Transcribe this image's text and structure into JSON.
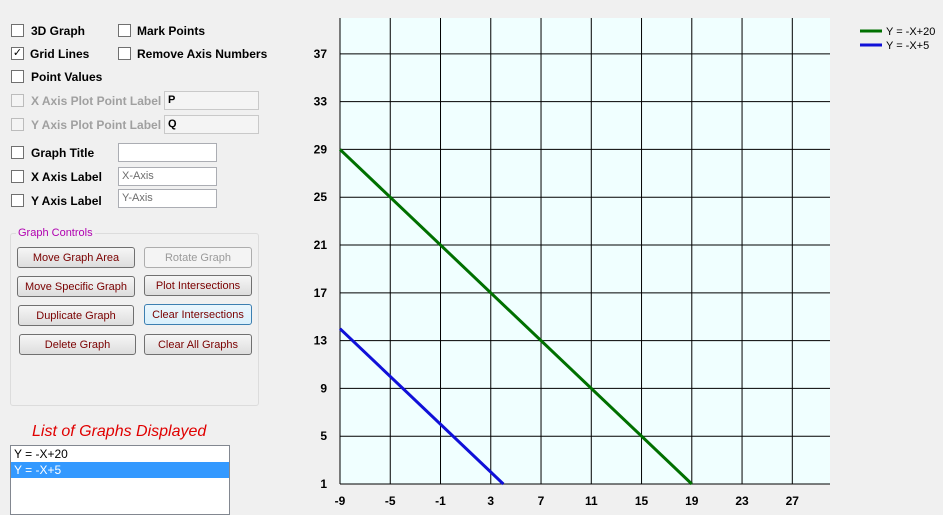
{
  "options": {
    "graph_3d": {
      "label": "3D Graph",
      "checked": false
    },
    "mark_points": {
      "label": "Mark Points",
      "checked": false
    },
    "grid_lines": {
      "label": "Grid Lines",
      "checked": true,
      "mark": "✓"
    },
    "remove_axis_numbers": {
      "label": "Remove Axis Numbers",
      "checked": false
    },
    "point_values": {
      "label": "Point Values",
      "checked": false
    },
    "x_plot_label": {
      "label": "X Axis Plot Point Label",
      "value": "P",
      "enabled": false
    },
    "y_plot_label": {
      "label": "Y Axis Plot Point Label",
      "value": "Q",
      "enabled": false
    },
    "graph_title": {
      "label": "Graph Title",
      "value": ""
    },
    "x_axis_label": {
      "label": "X Axis Label",
      "value": "X-Axis"
    },
    "y_axis_label": {
      "label": "Y Axis Label",
      "value": "Y-Axis"
    }
  },
  "graph_controls": {
    "title": "Graph Controls",
    "move_graph_area": "Move Graph Area",
    "rotate_graph": "Rotate Graph",
    "move_specific_graph": "Move Specific Graph",
    "plot_intersections": "Plot Intersections",
    "duplicate_graph": "Duplicate Graph",
    "clear_intersections": "Clear Intersections",
    "delete_graph": "Delete Graph",
    "clear_all_graphs": "Clear All Graphs"
  },
  "graph_list": {
    "title": "List of Graphs Displayed",
    "items": [
      "Y = -X+20",
      "Y = -X+5"
    ],
    "selected_index": 1
  },
  "colors": {
    "plot_background": "#f0ffff",
    "grid": "#000000",
    "series_1": "#007000",
    "series_2": "#1010d8"
  },
  "chart_data": {
    "type": "line",
    "xlim": [
      -9,
      30
    ],
    "ylim": [
      1,
      40
    ],
    "x_ticks": [
      -9,
      -5,
      -1,
      3,
      7,
      11,
      15,
      19,
      23,
      27
    ],
    "y_ticks": [
      1,
      5,
      9,
      13,
      17,
      21,
      25,
      29,
      33,
      37
    ],
    "x_tick_labels": [
      "-9",
      "-5",
      "-1",
      "3",
      "7",
      "11",
      "15",
      "19",
      "23",
      "27"
    ],
    "y_tick_labels": [
      "1",
      "5",
      "9",
      "13",
      "17",
      "21",
      "25",
      "29",
      "33",
      "37"
    ],
    "grid": true,
    "legend_position": "top-right",
    "series": [
      {
        "name": "Y = -X+20",
        "color": "#007000",
        "x": [
          -9,
          19
        ],
        "y": [
          29,
          1
        ]
      },
      {
        "name": "Y = -X+5",
        "color": "#1010d8",
        "x": [
          -9,
          4
        ],
        "y": [
          14,
          1
        ]
      }
    ]
  }
}
